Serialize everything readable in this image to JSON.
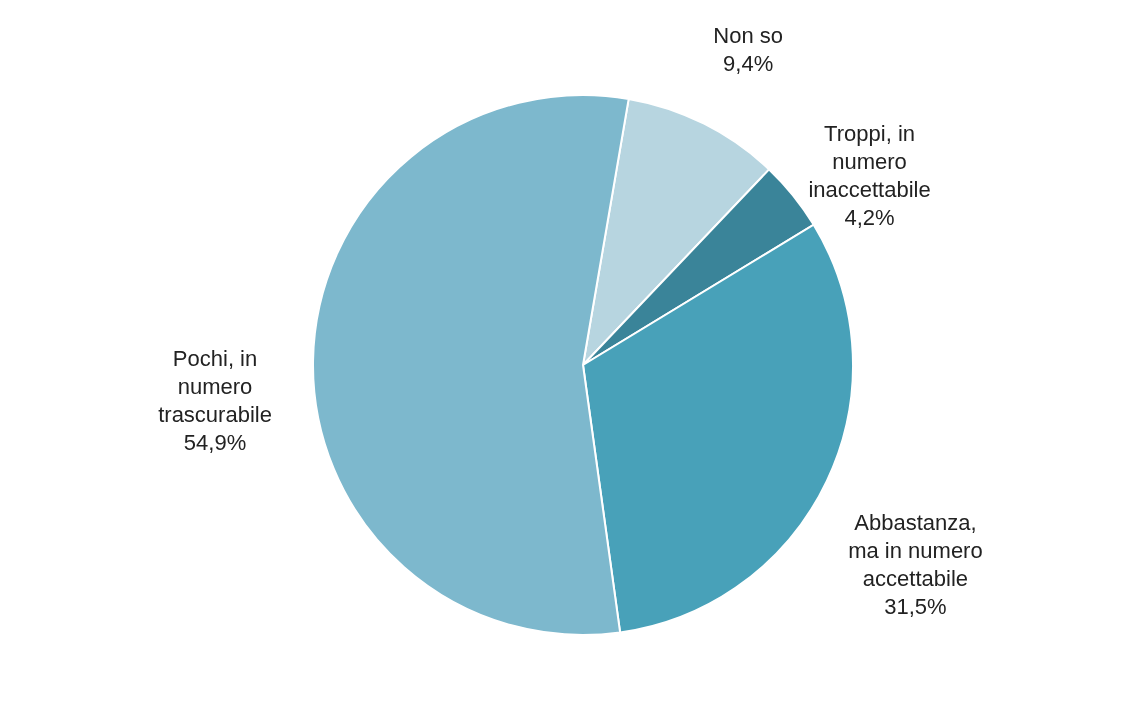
{
  "chart_data": {
    "type": "pie",
    "categories": [
      "Non so",
      "Troppi, in numero inaccettabile",
      "Abbastanza, ma in numero accettabile",
      "Pochi, in numero trascurabile"
    ],
    "values": [
      9.4,
      4.2,
      31.5,
      54.9
    ],
    "value_labels": [
      "9,4%",
      "4,2%",
      "31,5%",
      "54,9%"
    ],
    "colors": [
      "#b7d5e0",
      "#3a8499",
      "#48a1b9",
      "#7db8cd"
    ]
  }
}
